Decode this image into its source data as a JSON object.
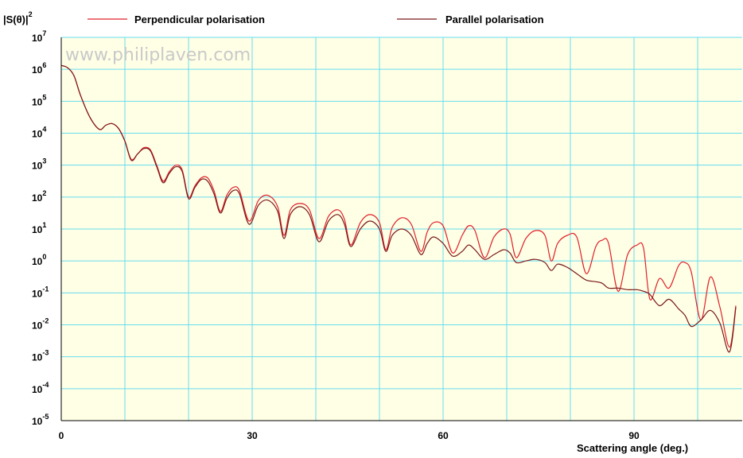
{
  "watermark": "www.philiplaven.com",
  "colors": {
    "plot_bg": "#ffffe6",
    "grid": "#66dcef",
    "perpendicular": "#e0202a",
    "parallel": "#7a1a1a"
  },
  "chart_data": {
    "type": "line",
    "ylabel_base": "|S(θ)|",
    "ylabel_exp": "2",
    "xlabel": "Scattering angle (deg.)",
    "xlim": [
      0,
      106
    ],
    "ylim_log10": [
      -5,
      7
    ],
    "y_scale": "log",
    "grid": true,
    "legend_position": "top",
    "x_ticks": [
      0,
      30,
      60,
      90
    ],
    "y_ticks": [
      {
        "base": "10",
        "exp": "7"
      },
      {
        "base": "10",
        "exp": "6"
      },
      {
        "base": "10",
        "exp": "5"
      },
      {
        "base": "10",
        "exp": "4"
      },
      {
        "base": "10",
        "exp": "3"
      },
      {
        "base": "10",
        "exp": "2"
      },
      {
        "base": "10",
        "exp": "1"
      },
      {
        "base": "10",
        "exp": "0"
      },
      {
        "base": "10",
        "exp": "-1"
      },
      {
        "base": "10",
        "exp": "-2"
      },
      {
        "base": "10",
        "exp": "-3"
      },
      {
        "base": "10",
        "exp": "-4"
      },
      {
        "base": "10",
        "exp": "-5"
      }
    ],
    "series": [
      {
        "name": "Perpendicular polarisation",
        "color": "#e0202a",
        "x": [
          0,
          1,
          2,
          3,
          4.5,
          6,
          7,
          8,
          9,
          10,
          11,
          12,
          13,
          14,
          15,
          16,
          17,
          18,
          19,
          20,
          21,
          22,
          23,
          24,
          25,
          26,
          27,
          28,
          29.5,
          31,
          32.5,
          34,
          35,
          36,
          37.5,
          39,
          40.5,
          42,
          43.5,
          44.5,
          45.5,
          47,
          48.5,
          50,
          51,
          52,
          53.5,
          55,
          56.5,
          57.5,
          58.5,
          60,
          61.5,
          63,
          64,
          65,
          66.5,
          68,
          69.5,
          70.5,
          71.5,
          73,
          74.5,
          76,
          77,
          78,
          79.5,
          81,
          82.5,
          84,
          85,
          86,
          87.5,
          89,
          90.5,
          91.5,
          92.5,
          94,
          95.5,
          97,
          98,
          99,
          100.5,
          102,
          103.5,
          105,
          106
        ],
        "y_log10": [
          6.12,
          6.05,
          5.8,
          5.2,
          4.5,
          4.12,
          4.25,
          4.3,
          4.15,
          3.75,
          3.18,
          3.35,
          3.55,
          3.48,
          3.0,
          2.5,
          2.8,
          3.0,
          2.85,
          2.0,
          2.35,
          2.6,
          2.6,
          2.2,
          1.55,
          2.05,
          2.3,
          2.2,
          1.25,
          1.9,
          2.05,
          1.7,
          0.8,
          1.6,
          1.8,
          1.6,
          0.7,
          1.4,
          1.6,
          1.3,
          0.5,
          1.2,
          1.45,
          1.2,
          0.35,
          1.05,
          1.35,
          1.15,
          0.3,
          0.9,
          1.2,
          1.1,
          0.25,
          0.8,
          1.1,
          0.95,
          0.1,
          0.75,
          1.0,
          0.85,
          0.1,
          0.7,
          0.95,
          0.8,
          0.0,
          0.55,
          0.8,
          0.75,
          -0.4,
          0.45,
          0.65,
          0.55,
          -0.95,
          0.2,
          0.5,
          0.4,
          -1.2,
          -0.55,
          -0.85,
          -0.15,
          -0.05,
          -0.35,
          -1.85,
          -0.5,
          -1.45,
          -2.7,
          -1.4
        ]
      },
      {
        "name": "Parallel polarisation",
        "color": "#7a1a1a",
        "x": [
          0,
          1,
          2,
          3,
          4.5,
          6,
          7,
          8,
          9,
          10,
          11,
          12,
          13,
          14,
          15,
          16,
          17,
          18,
          19,
          20,
          21,
          22,
          23,
          24,
          25,
          26,
          27,
          28,
          29.5,
          31,
          32.5,
          34,
          35,
          36,
          37.5,
          39,
          40.5,
          42,
          43.5,
          44.5,
          45.5,
          47,
          48.5,
          50,
          51,
          52,
          53.5,
          55,
          56.5,
          57.5,
          58.5,
          60,
          61.5,
          63,
          64,
          65,
          66.5,
          68,
          69.5,
          70.5,
          71.5,
          73,
          74.5,
          76,
          77,
          78,
          79.5,
          81,
          82.5,
          84,
          85,
          86,
          87.5,
          89,
          90.5,
          91.5,
          92.5,
          94,
          95.5,
          97,
          98,
          99,
          100.5,
          102,
          103.5,
          105,
          106
        ],
        "y_log10": [
          6.12,
          6.05,
          5.8,
          5.2,
          4.5,
          4.12,
          4.25,
          4.3,
          4.15,
          3.75,
          3.15,
          3.35,
          3.52,
          3.45,
          2.95,
          2.45,
          2.75,
          2.95,
          2.8,
          1.95,
          2.3,
          2.55,
          2.5,
          2.1,
          1.5,
          1.95,
          2.2,
          2.1,
          1.15,
          1.75,
          1.9,
          1.55,
          0.7,
          1.45,
          1.7,
          1.45,
          0.6,
          1.25,
          1.45,
          1.15,
          0.45,
          1.0,
          1.25,
          1.0,
          0.3,
          0.8,
          1.0,
          0.8,
          0.2,
          0.55,
          0.75,
          0.55,
          0.15,
          0.3,
          0.5,
          0.35,
          0.05,
          0.2,
          0.35,
          0.25,
          -0.05,
          0.0,
          0.05,
          -0.05,
          -0.3,
          -0.1,
          -0.2,
          -0.4,
          -0.6,
          -0.65,
          -0.7,
          -0.85,
          -0.85,
          -0.9,
          -0.9,
          -0.95,
          -1.05,
          -1.4,
          -1.2,
          -1.5,
          -1.7,
          -2.05,
          -1.85,
          -1.55,
          -1.95,
          -2.85,
          -1.45
        ]
      }
    ]
  }
}
